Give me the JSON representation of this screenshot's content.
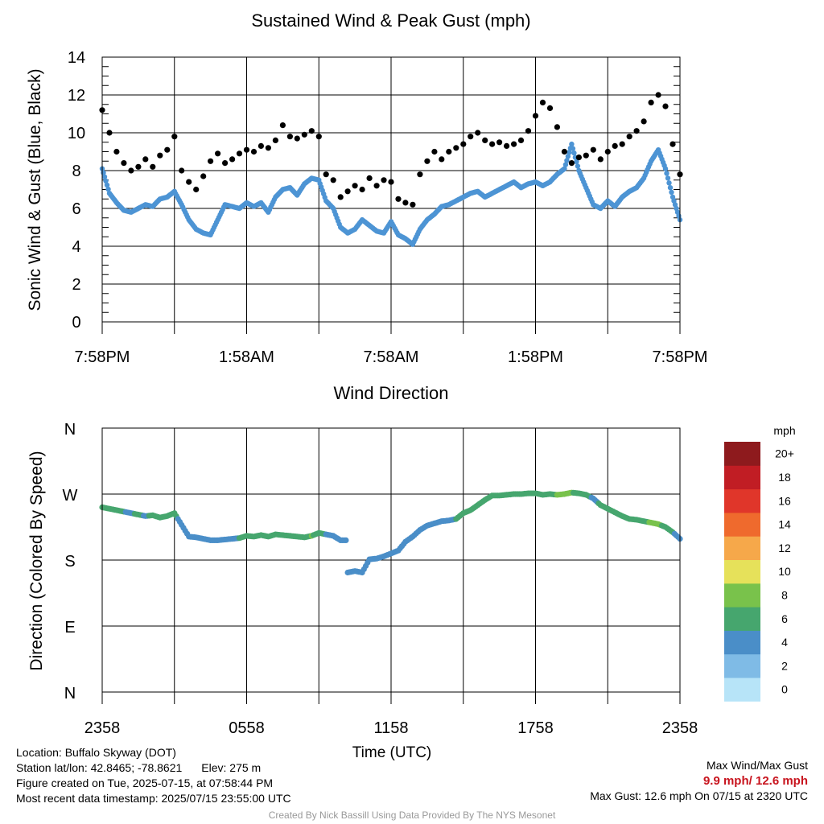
{
  "chart_data": [
    {
      "type": "scatter",
      "title": "Sustained Wind & Peak Gust (mph)",
      "xlabel": "",
      "ylabel": "Sonic Wind & Gust (Blue, Black)",
      "xticks": [
        "7:58PM",
        "1:58AM",
        "7:58AM",
        "1:58PM",
        "7:58PM"
      ],
      "ylim": [
        0,
        14
      ],
      "yticks": [
        0,
        2,
        4,
        6,
        8,
        10,
        12,
        14
      ],
      "grid": true,
      "x_unit": "hours since 7:58PM",
      "series": [
        {
          "name": "",
          "color": "#4d94d4",
          "x": [
            0,
            0.3,
            0.6,
            0.9,
            1.2,
            1.5,
            1.8,
            2.1,
            2.4,
            2.7,
            3.0,
            3.3,
            3.6,
            3.9,
            4.2,
            4.5,
            4.8,
            5.1,
            5.4,
            5.7,
            6.0,
            6.3,
            6.6,
            6.9,
            7.2,
            7.5,
            7.8,
            8.1,
            8.4,
            8.7,
            9.0,
            9.3,
            9.6,
            9.9,
            10.2,
            10.5,
            10.8,
            11.1,
            11.4,
            11.7,
            12.0,
            12.3,
            12.6,
            12.9,
            13.2,
            13.5,
            13.8,
            14.1,
            14.4,
            14.7,
            15.0,
            15.3,
            15.6,
            15.9,
            16.2,
            16.5,
            16.8,
            17.1,
            17.4,
            17.7,
            18.0,
            18.3,
            18.6,
            18.9,
            19.2,
            19.5,
            19.8,
            20.1,
            20.4,
            20.7,
            21.0,
            21.3,
            21.6,
            21.9,
            22.2,
            22.5,
            22.8,
            23.1,
            23.4,
            23.7,
            24.0
          ],
          "values": [
            8.1,
            6.8,
            6.3,
            5.9,
            5.8,
            6.0,
            6.2,
            6.1,
            6.5,
            6.6,
            6.9,
            6.2,
            5.4,
            4.9,
            4.7,
            4.6,
            5.4,
            6.2,
            6.1,
            6.0,
            6.3,
            6.1,
            6.3,
            5.8,
            6.6,
            7.0,
            7.1,
            6.7,
            7.3,
            7.6,
            7.5,
            6.4,
            6.0,
            5.0,
            4.7,
            4.9,
            5.4,
            5.1,
            4.8,
            4.7,
            5.3,
            4.6,
            4.4,
            4.1,
            4.9,
            5.4,
            5.7,
            6.1,
            6.2,
            6.4,
            6.6,
            6.8,
            6.9,
            6.6,
            6.8,
            7.0,
            7.2,
            7.4,
            7.1,
            7.3,
            7.4,
            7.2,
            7.4,
            7.8,
            8.1,
            9.4,
            8.0,
            7.1,
            6.2,
            6.0,
            6.4,
            6.1,
            6.6,
            6.9,
            7.1,
            7.6,
            8.5,
            9.1,
            8.1,
            6.6,
            5.4
          ]
        },
        {
          "name": "",
          "color": "#000000",
          "x": [
            0,
            0.3,
            0.6,
            0.9,
            1.2,
            1.5,
            1.8,
            2.1,
            2.4,
            2.7,
            3.0,
            3.3,
            3.6,
            3.9,
            4.2,
            4.5,
            4.8,
            5.1,
            5.4,
            5.7,
            6.0,
            6.3,
            6.6,
            6.9,
            7.2,
            7.5,
            7.8,
            8.1,
            8.4,
            8.7,
            9.0,
            9.3,
            9.6,
            9.9,
            10.2,
            10.5,
            10.8,
            11.1,
            11.4,
            11.7,
            12.0,
            12.3,
            12.6,
            12.9,
            13.2,
            13.5,
            13.8,
            14.1,
            14.4,
            14.7,
            15.0,
            15.3,
            15.6,
            15.9,
            16.2,
            16.5,
            16.8,
            17.1,
            17.4,
            17.7,
            18.0,
            18.3,
            18.6,
            18.9,
            19.2,
            19.5,
            19.8,
            20.1,
            20.4,
            20.7,
            21.0,
            21.3,
            21.6,
            21.9,
            22.2,
            22.5,
            22.8,
            23.1,
            23.4,
            23.7,
            24.0
          ],
          "values": [
            11.2,
            10.0,
            9.0,
            8.4,
            8.0,
            8.2,
            8.6,
            8.2,
            8.8,
            9.1,
            9.8,
            8.0,
            7.4,
            7.0,
            7.7,
            8.5,
            8.9,
            8.4,
            8.6,
            8.9,
            9.1,
            9.0,
            9.3,
            9.2,
            9.6,
            10.4,
            9.8,
            9.7,
            9.9,
            10.1,
            9.8,
            7.8,
            7.5,
            6.6,
            6.9,
            7.2,
            7.0,
            7.6,
            7.2,
            7.5,
            7.4,
            6.5,
            6.3,
            6.2,
            7.8,
            8.5,
            9.0,
            8.6,
            9.0,
            9.2,
            9.4,
            9.8,
            10.0,
            9.6,
            9.4,
            9.5,
            9.3,
            9.4,
            9.6,
            10.1,
            10.9,
            11.6,
            11.3,
            10.3,
            9.0,
            8.4,
            8.7,
            8.8,
            9.1,
            8.6,
            9.0,
            9.3,
            9.4,
            9.8,
            10.1,
            10.6,
            11.6,
            12.0,
            11.4,
            9.4,
            7.8
          ]
        }
      ]
    },
    {
      "type": "scatter",
      "title": "Wind Direction",
      "xlabel": "Time (UTC)",
      "ylabel": "Direction (Colored By Speed)",
      "xticks": [
        "2358",
        "0558",
        "1158",
        "1758",
        "2358"
      ],
      "yticks": [
        "N",
        "E",
        "S",
        "W",
        "N"
      ],
      "ylim": [
        0,
        360
      ],
      "grid": true,
      "x_unit": "hours since 2358 UTC",
      "series": [
        {
          "name": "",
          "x": [
            0,
            0.3,
            0.6,
            0.9,
            1.2,
            1.5,
            1.8,
            2.1,
            2.4,
            2.7,
            3.0,
            3.3,
            3.6,
            3.9,
            4.2,
            4.5,
            4.8,
            5.1,
            5.4,
            5.7,
            6.0,
            6.3,
            6.6,
            6.9,
            7.2,
            7.5,
            7.8,
            8.1,
            8.4,
            8.7,
            9.0,
            9.3,
            9.6,
            9.9,
            10.2,
            10.5,
            10.8,
            11.1,
            11.4,
            11.7,
            12.0,
            12.3,
            12.6,
            12.9,
            13.2,
            13.5,
            13.8,
            14.1,
            14.4,
            14.7,
            15.0,
            15.3,
            15.6,
            15.9,
            16.2,
            16.5,
            16.8,
            17.1,
            17.4,
            17.7,
            18.0,
            18.3,
            18.6,
            18.9,
            19.2,
            19.5,
            19.8,
            20.1,
            20.4,
            20.7,
            21.0,
            21.3,
            21.6,
            21.9,
            22.2,
            22.5,
            22.8,
            23.1,
            23.4,
            23.7,
            24.0
          ],
          "values": [
            252,
            250,
            248,
            246,
            244,
            242,
            240,
            241,
            238,
            240,
            244,
            228,
            212,
            211,
            209,
            207,
            207,
            208,
            209,
            210,
            213,
            212,
            214,
            212,
            215,
            214,
            213,
            212,
            211,
            213,
            217,
            215,
            213,
            207,
            163,
            165,
            163,
            181,
            182,
            185,
            189,
            193,
            205,
            212,
            221,
            227,
            230,
            233,
            234,
            236,
            244,
            248,
            255,
            262,
            268,
            268,
            269,
            270,
            270,
            271,
            271,
            269,
            270,
            269,
            270,
            272,
            271,
            269,
            264,
            255,
            250,
            245,
            240,
            236,
            235,
            233,
            231,
            229,
            225,
            218,
            209
          ],
          "speeds": [
            6.5,
            6.8,
            6.4,
            6.0,
            5.8,
            6.2,
            5.9,
            6.1,
            6.6,
            6.4,
            7.0,
            4.2,
            5.5,
            5.0,
            4.4,
            4.3,
            5.1,
            5.6,
            5.8,
            6.0,
            6.2,
            6.4,
            6.9,
            6.3,
            6.8,
            7.2,
            7.0,
            6.3,
            7.1,
            8.0,
            7.5,
            5.8,
            5.3,
            4.7,
            4.1,
            4.0,
            4.5,
            4.8,
            5.4,
            4.5,
            4.6,
            4.3,
            4.1,
            4.2,
            4.4,
            4.6,
            5.2,
            5.5,
            5.8,
            6.0,
            6.2,
            6.4,
            6.8,
            6.6,
            6.9,
            7.3,
            7.2,
            7.5,
            7.4,
            7.6,
            7.8,
            7.4,
            7.7,
            8.0,
            9.2,
            8.1,
            7.0,
            6.2,
            5.8,
            6.1,
            6.4,
            6.6,
            7.0,
            7.2,
            7.5,
            7.8,
            8.1,
            8.3,
            7.6,
            6.4,
            4.5
          ]
        }
      ]
    }
  ],
  "colorbar": {
    "unit": "mph",
    "labels": [
      "0",
      "2",
      "4",
      "6",
      "8",
      "10",
      "12",
      "14",
      "16",
      "18",
      "20+"
    ],
    "colors": [
      "#b7e4f8",
      "#7fbbe6",
      "#4a8ec8",
      "#46a66e",
      "#79c24b",
      "#e6e15a",
      "#f6a84a",
      "#ef6a2d",
      "#e0362a",
      "#c11d24",
      "#8e1a1d"
    ]
  },
  "footer": {
    "location": "Location: Buffalo Skyway (DOT)",
    "latlon": "Station lat/lon: 42.8465; -78.8621",
    "elev": "Elev: 275 m",
    "created": "Figure created on Tue, 2025-07-15, at 07:58:44 PM",
    "recent": "Most recent data timestamp: 2025/07/15 23:55:00 UTC",
    "max_title": "Max Wind/Max Gust",
    "max_values": "9.9 mph/ 12.6 mph",
    "max_gust": "Max Gust: 12.6 mph On 07/15 at 2320 UTC",
    "credit": "Created By Nick Bassill Using Data Provided By The NYS Mesonet"
  }
}
